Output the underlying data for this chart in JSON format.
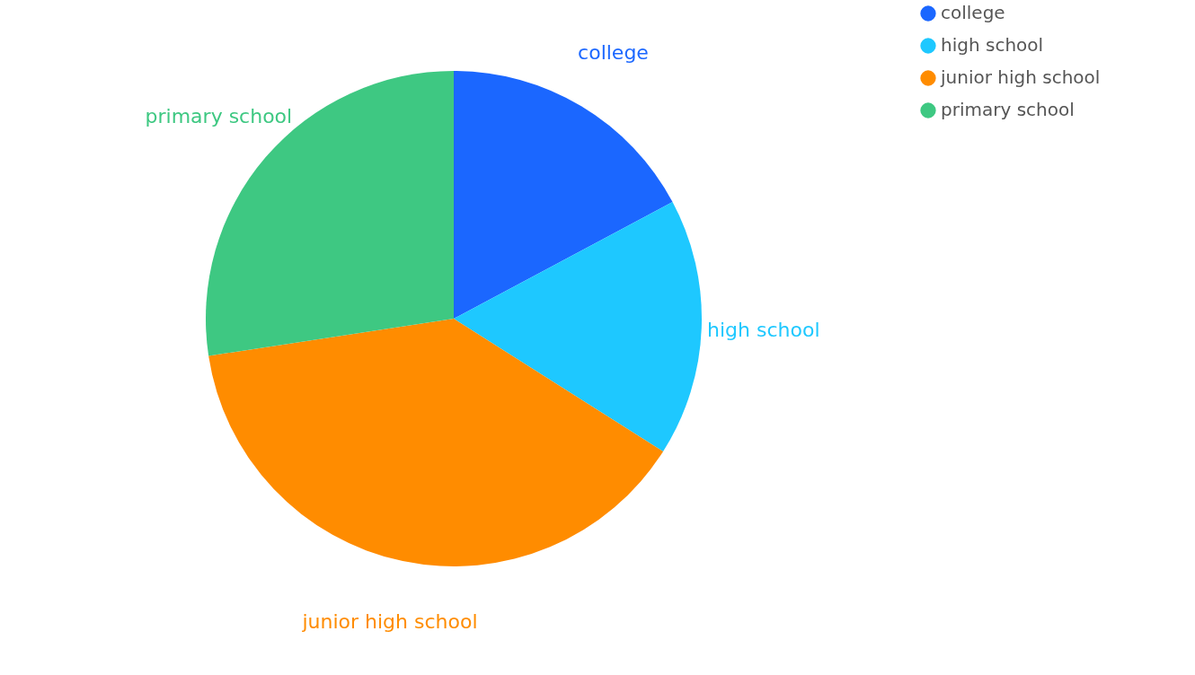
{
  "chart_data": {
    "type": "pie",
    "categories": [
      "college",
      "high school",
      "junior high school",
      "primary school"
    ],
    "values": [
      17.2,
      16.8,
      38.6,
      27.4
    ],
    "colors": [
      "#1b67ff",
      "#1ec8ff",
      "#ff8c00",
      "#3ec882"
    ],
    "legend": "right"
  }
}
